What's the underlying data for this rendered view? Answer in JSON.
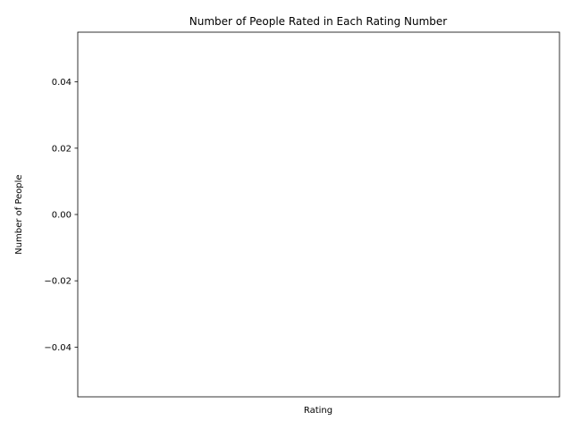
{
  "chart_data": {
    "type": "bar",
    "title": "Number of People Rated in Each Rating Number",
    "xlabel": "Rating",
    "ylabel": "Number of People",
    "categories": [],
    "values": [],
    "ylim": [
      -0.055,
      0.055
    ],
    "yticks": [
      -0.04,
      -0.02,
      0.0,
      0.02,
      0.04
    ],
    "ytick_labels": [
      "−0.04",
      "−0.02",
      "0.00",
      "0.02",
      "0.04"
    ],
    "grid": false,
    "legend": "none"
  }
}
